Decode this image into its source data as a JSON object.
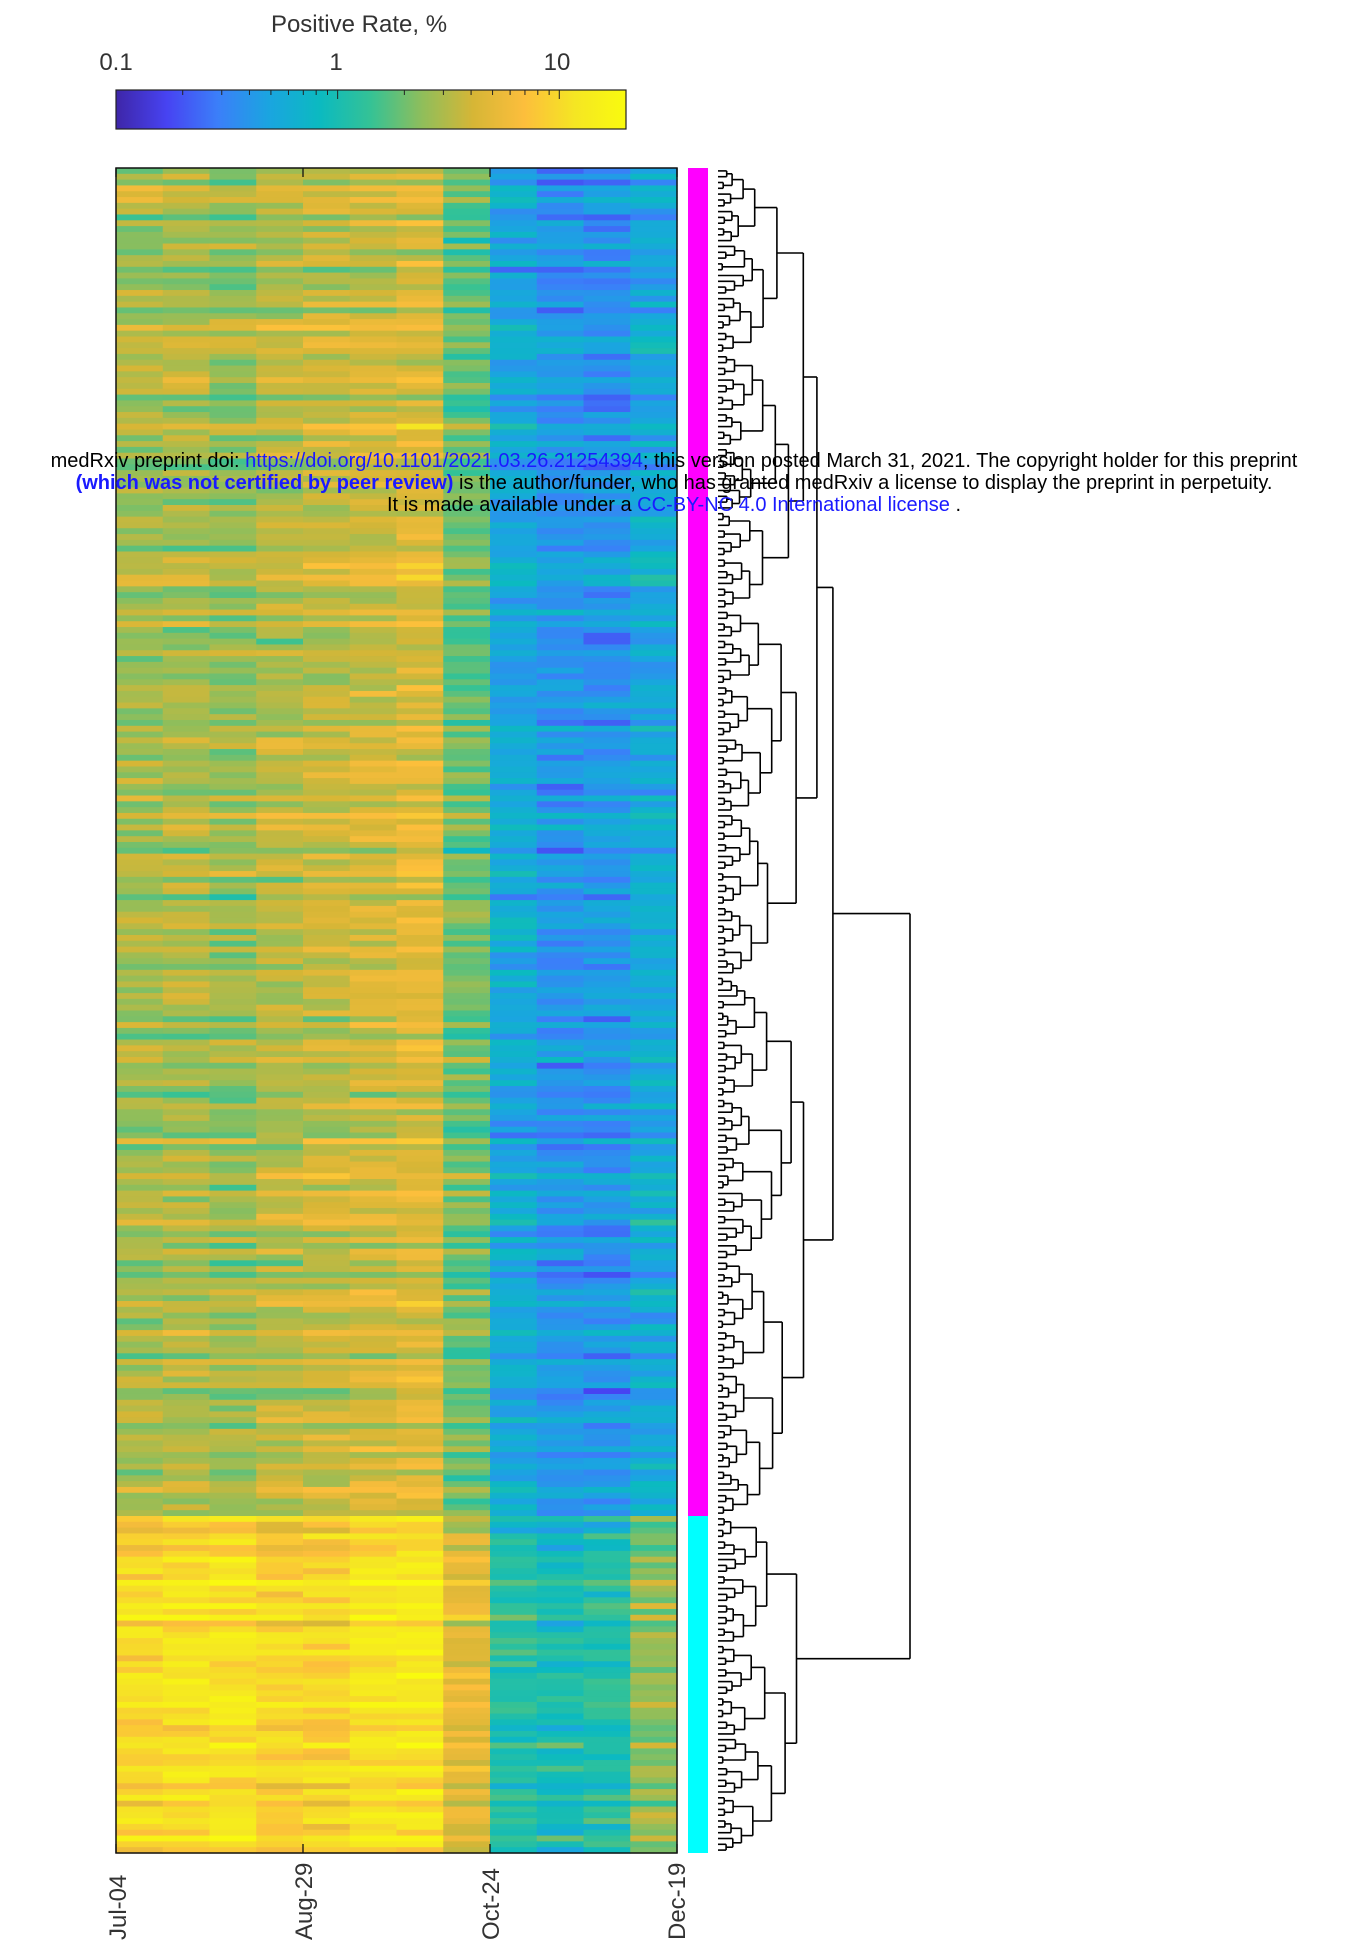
{
  "banner": {
    "line1_prefix": "medRxiv preprint doi: ",
    "doi_link": "https://doi.org/10.1101/2021.03.26.21254394",
    "line1_suffix": "; this version posted March 31, 2021. The copyright holder for this preprint",
    "line2_bold": "(which was not certified by peer review)",
    "line2_rest": " is the author/funder, who has granted medRxiv a license to display the preprint in perpetuity.",
    "line3_prefix": "It is made available under a ",
    "license_link": "CC-BY-NC 4.0 International license",
    "line3_suffix": " ."
  },
  "colors": {
    "cluster_magenta": "#ff00ff",
    "cluster_cyan": "#00ffff",
    "colormap": [
      "#3e26a8",
      "#4743f2",
      "#3b7ff9",
      "#1aa5e0",
      "#0bbac0",
      "#35c295",
      "#8fbe5b",
      "#d6b636",
      "#fcbe3c",
      "#f5e623",
      "#f9fb0e"
    ]
  },
  "chart_data": {
    "type": "heatmap",
    "colorbar": {
      "label": "Positive Rate, %",
      "scale": "log",
      "range": [
        0.1,
        20
      ],
      "tick_labels": [
        "0.1",
        "1",
        "10"
      ],
      "tick_values": [
        0.1,
        1,
        10
      ]
    },
    "x_tick_labels": [
      "Jul-04",
      "Aug-29",
      "Oct-24",
      "Dec-19"
    ],
    "columns": 12,
    "rows": 290,
    "clusters": [
      {
        "color": "magenta",
        "rows": 232
      },
      {
        "color": "cyan",
        "rows": 58
      }
    ],
    "cluster1_column_profile_percent": [
      2.8,
      3.0,
      2.6,
      3.2,
      3.6,
      4.0,
      4.6,
      1.9,
      0.55,
      0.4,
      0.4,
      0.55
    ],
    "cluster2_column_profile_percent": [
      9.5,
      10.5,
      11.0,
      9.0,
      9.5,
      11.5,
      12.0,
      5.0,
      1.1,
      0.9,
      1.1,
      2.5
    ],
    "dendrogram": true
  }
}
